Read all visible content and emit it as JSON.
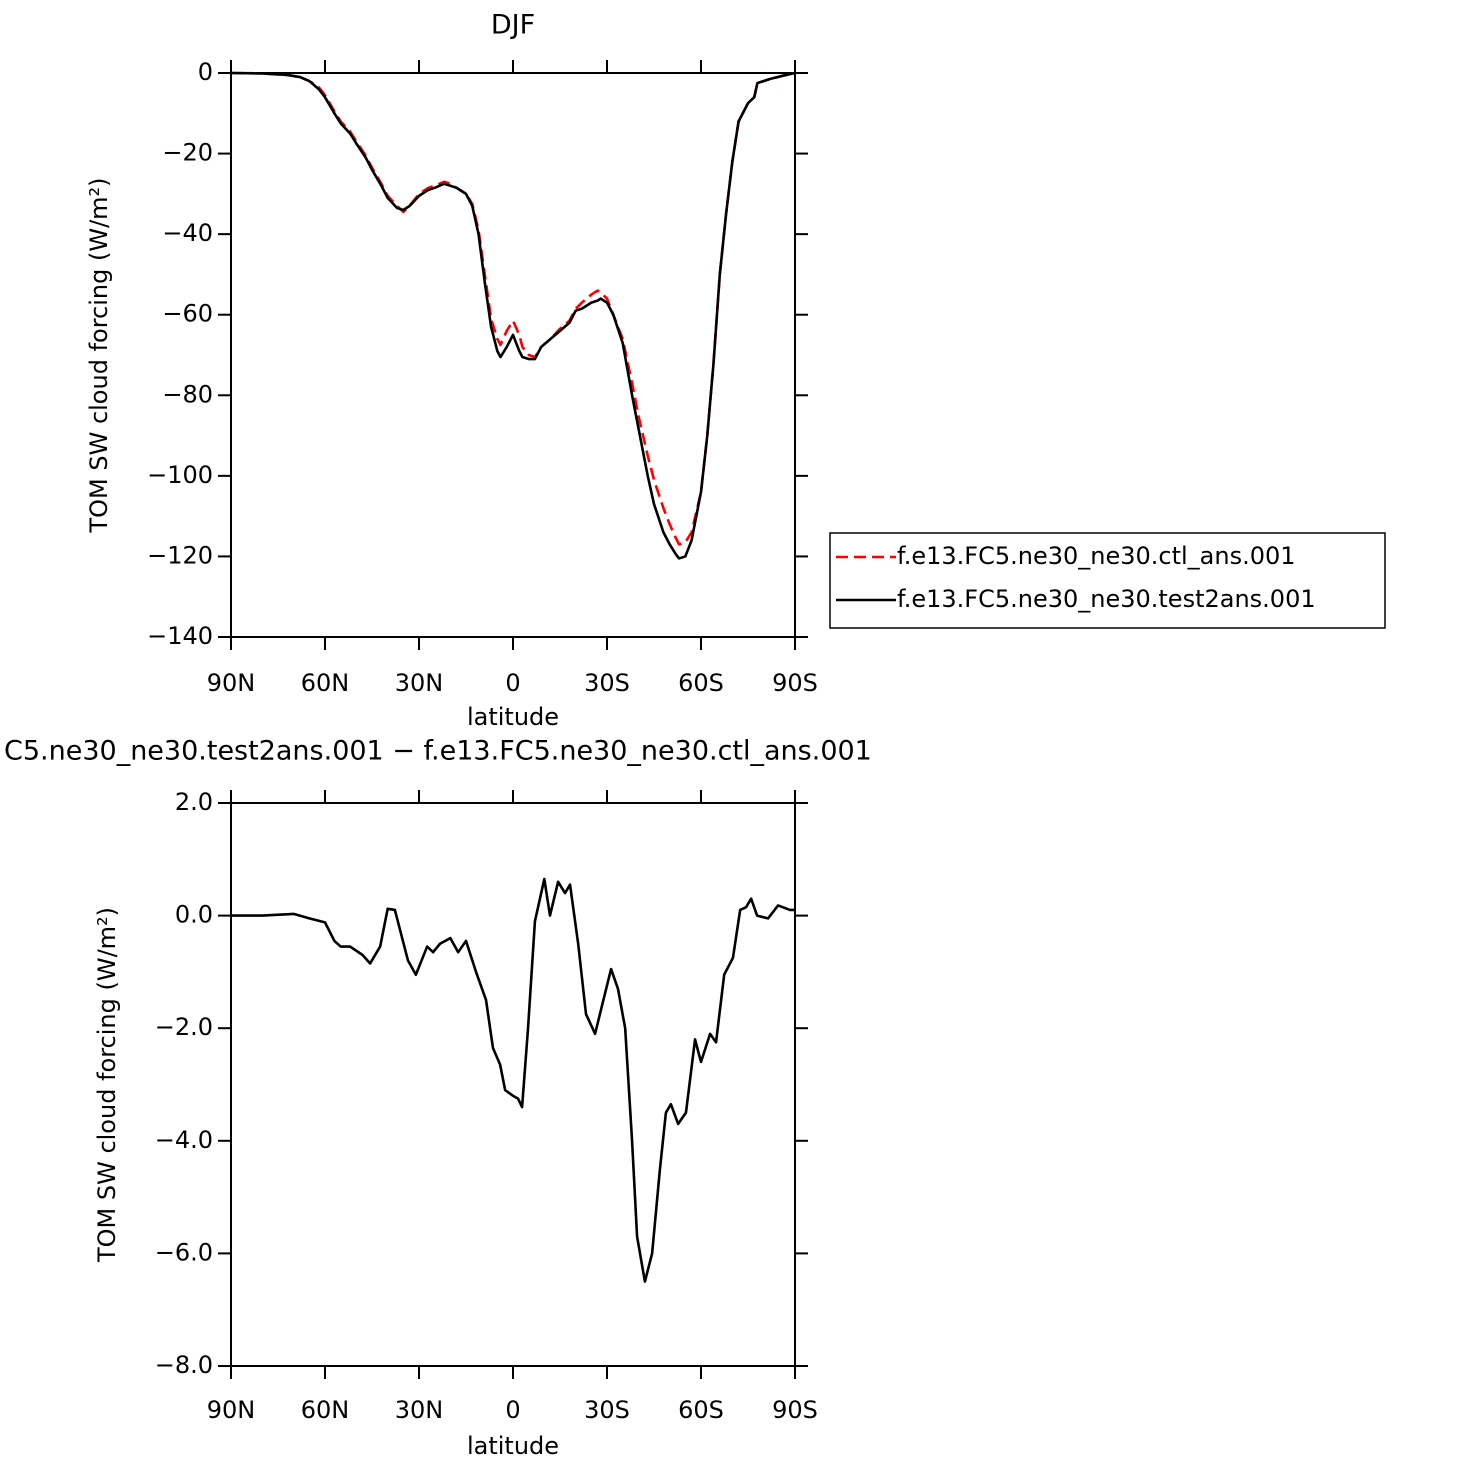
{
  "chart_data": [
    {
      "type": "line",
      "title": "DJF",
      "xlabel": "latitude",
      "ylabel": "TOM SW cloud forcing (W/m²)",
      "x": [
        90,
        80,
        72,
        68,
        65,
        62,
        60,
        57,
        55,
        52,
        50,
        47,
        45,
        42,
        40,
        37,
        35,
        33,
        30,
        27,
        25,
        22,
        20,
        18,
        15,
        13,
        11,
        9,
        7,
        5,
        4,
        2,
        0,
        -2,
        -3,
        -5,
        -7,
        -9,
        -12,
        -15,
        -18,
        -20,
        -22,
        -25,
        -27,
        -28,
        -30,
        -32,
        -35,
        -38,
        -40,
        -43,
        -45,
        -48,
        -50,
        -52,
        -53,
        -55,
        -57,
        -60,
        -62,
        -64,
        -66,
        -68,
        -70,
        -72,
        -75,
        -77,
        -78,
        -82,
        -86,
        -90
      ],
      "xlim": [
        90,
        -90
      ],
      "xticks": [
        {
          "value": 90,
          "label": "90N"
        },
        {
          "value": 60,
          "label": "60N"
        },
        {
          "value": 30,
          "label": "30N"
        },
        0,
        {
          "value": -30,
          "label": "30S"
        },
        {
          "value": -60,
          "label": "60S"
        },
        {
          "value": -90,
          "label": "90S"
        }
      ],
      "ylim": [
        -140,
        0
      ],
      "yticks": [
        0,
        {
          "value": -20,
          "label": "−20"
        },
        {
          "value": -40,
          "label": "−40"
        },
        {
          "value": -60,
          "label": "−60"
        },
        {
          "value": -80,
          "label": "−80"
        },
        {
          "value": -100,
          "label": "−100"
        },
        {
          "value": -120,
          "label": "−120"
        },
        {
          "value": -140,
          "label": "−140"
        }
      ],
      "legend": "right",
      "series": [
        {
          "name": "f.e13.FC5.ne30_ne30.ctl_ans.001",
          "color": "#ff0000",
          "dashed": true,
          "values": [
            0,
            -0.1,
            -0.5,
            -1,
            -2,
            -3.5,
            -5.5,
            -9.5,
            -12,
            -14.5,
            -17,
            -20.5,
            -23.5,
            -27.5,
            -30.5,
            -33,
            -34.5,
            -33,
            -30,
            -28.5,
            -28,
            -27,
            -27.5,
            -28.5,
            -30,
            -32.5,
            -39,
            -50,
            -61,
            -66,
            -67.5,
            -64,
            -61.5,
            -65,
            -68,
            -70,
            -70.5,
            -68,
            -66,
            -63.5,
            -61.5,
            -58.5,
            -57,
            -55,
            -54,
            -54.5,
            -56,
            -60,
            -66,
            -77,
            -85,
            -95,
            -101,
            -108,
            -112,
            -115.5,
            -117,
            -116.5,
            -114,
            -104,
            -90,
            -72,
            -50,
            -35,
            -22,
            -12,
            -7.5,
            -6,
            -2.5,
            -1.5,
            -0.7,
            0
          ]
        },
        {
          "name": "f.e13.FC5.ne30_ne30.test2ans.001",
          "color": "#000000",
          "dashed": false,
          "values": [
            0,
            -0.1,
            -0.5,
            -1,
            -2,
            -4,
            -6,
            -10,
            -12.5,
            -15,
            -17.5,
            -21,
            -24,
            -28,
            -31,
            -33.5,
            -34,
            -33,
            -30.5,
            -29,
            -28.5,
            -27.5,
            -28,
            -28.5,
            -30,
            -33,
            -40,
            -52,
            -63,
            -69,
            -70.5,
            -68,
            -65,
            -69,
            -70.5,
            -71,
            -71,
            -68,
            -66,
            -64,
            -62,
            -59,
            -58.5,
            -57,
            -56.5,
            -56,
            -57,
            -60,
            -67,
            -80,
            -88,
            -100,
            -107,
            -114,
            -117,
            -119.5,
            -120.5,
            -120,
            -116,
            -104,
            -90,
            -72,
            -50,
            -35,
            -22,
            -12,
            -7.5,
            -6,
            -2.5,
            -1.5,
            -0.7,
            0
          ]
        }
      ]
    },
    {
      "type": "line",
      "title": "C5.ne30_ne30.test2ans.001 − f.e13.FC5.ne30_ne30.ctl_ans.001",
      "xlabel": "latitude",
      "ylabel": "TOM SW cloud forcing (W/m²)",
      "x": [
        90,
        80,
        70,
        65,
        60,
        57,
        55,
        52,
        48,
        45.6,
        42.4,
        40,
        37.7,
        33.5,
        31,
        27.4,
        25.5,
        23.3,
        20,
        17.5,
        15,
        11.8,
        8.6,
        6.4,
        4.1,
        2.5,
        0,
        -1.6,
        -2.9,
        -4.8,
        -7,
        -10,
        -11.8,
        -14.4,
        -16.6,
        -18.2,
        -20.8,
        -23.3,
        -26.2,
        -28.4,
        -31.3,
        -33.5,
        -35.8,
        -38,
        -39.6,
        -42.1,
        -44.4,
        -46.9,
        -48.8,
        -50.4,
        -52.7,
        -55.2,
        -58.1,
        -60,
        -62.9,
        -64.8,
        -67.4,
        -70.2,
        -72.5,
        -74.4,
        -76,
        -77.9,
        -81.4,
        -84.6,
        -88.4,
        -90
      ],
      "xlim": [
        90,
        -90
      ],
      "xticks": [
        {
          "value": 90,
          "label": "90N"
        },
        {
          "value": 60,
          "label": "60N"
        },
        {
          "value": 30,
          "label": "30N"
        },
        0,
        {
          "value": -30,
          "label": "30S"
        },
        {
          "value": -60,
          "label": "60S"
        },
        {
          "value": -90,
          "label": "90S"
        }
      ],
      "ylim": [
        -8,
        2
      ],
      "yticks": [
        {
          "value": 2,
          "label": "2.0"
        },
        {
          "value": 0,
          "label": "0.0"
        },
        {
          "value": -2,
          "label": "−2.0"
        },
        {
          "value": -4,
          "label": "−4.0"
        },
        {
          "value": -6,
          "label": "−6.0"
        },
        {
          "value": -8,
          "label": "−8.0"
        }
      ],
      "color": "#000000",
      "values": [
        0,
        0,
        0.03,
        -0.05,
        -0.12,
        -0.45,
        -0.55,
        -0.55,
        -0.7,
        -0.85,
        -0.55,
        0.12,
        0.1,
        -0.8,
        -1.05,
        -0.55,
        -0.65,
        -0.5,
        -0.4,
        -0.65,
        -0.45,
        -1.0,
        -1.5,
        -2.35,
        -2.65,
        -3.1,
        -3.2,
        -3.25,
        -3.4,
        -2.0,
        -0.1,
        0.65,
        0.0,
        0.6,
        0.4,
        0.55,
        -0.5,
        -1.75,
        -2.1,
        -1.6,
        -0.95,
        -1.3,
        -2.0,
        -4.0,
        -5.7,
        -6.5,
        -6.0,
        -4.5,
        -3.5,
        -3.35,
        -3.7,
        -3.5,
        -2.2,
        -2.6,
        -2.1,
        -2.25,
        -1.05,
        -0.75,
        0.1,
        0.15,
        0.3,
        0.0,
        -0.05,
        0.18,
        0.1,
        0.1
      ]
    }
  ]
}
